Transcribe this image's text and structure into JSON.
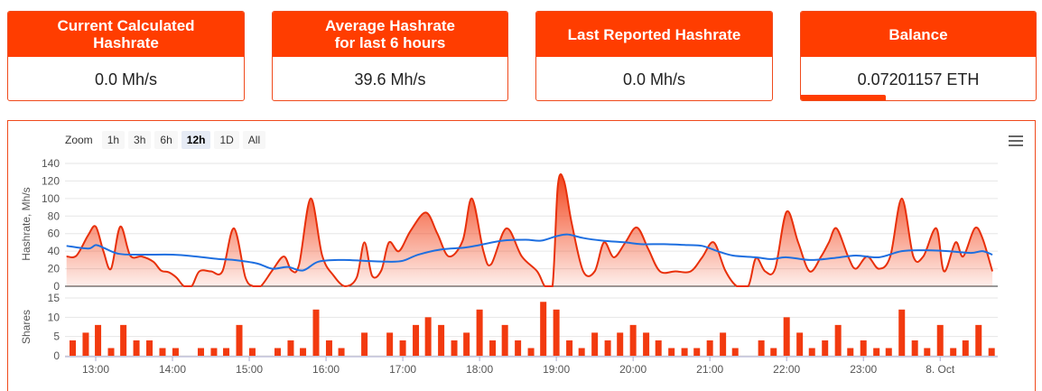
{
  "cards": [
    {
      "title": "Current Calculated\nHashrate",
      "value": "0.0 Mh/s"
    },
    {
      "title": "Average Hashrate\nfor last 6 hours",
      "value": "39.6 Mh/s"
    },
    {
      "title": "Last Reported Hashrate",
      "value": "0.0 Mh/s"
    },
    {
      "title": "Balance",
      "value": "0.07201157 ETH",
      "progress": 0.36
    }
  ],
  "zoom": {
    "label": "Zoom",
    "buttons": [
      "1h",
      "3h",
      "6h",
      "12h",
      "1D",
      "All"
    ],
    "active": "12h"
  },
  "menu_icon": "hamburger-menu-icon",
  "colors": {
    "accent": "#ff3d00",
    "line_blue": "#1e6fe0",
    "bar_red": "#f23a0f"
  },
  "chart_data": [
    {
      "type": "area",
      "ylabel": "Hashrate, Mh/s",
      "ylim": [
        0,
        140
      ],
      "yticks": [
        0,
        20,
        40,
        60,
        80,
        100,
        120,
        140
      ],
      "x_range": [
        12.6,
        24.75
      ],
      "series": [
        {
          "name": "",
          "kind": "area",
          "points": [
            [
              12.62,
              34
            ],
            [
              12.75,
              35
            ],
            [
              12.9,
              58
            ],
            [
              13.0,
              68
            ],
            [
              13.1,
              40
            ],
            [
              13.2,
              20
            ],
            [
              13.32,
              68
            ],
            [
              13.45,
              35
            ],
            [
              13.6,
              34
            ],
            [
              13.75,
              28
            ],
            [
              13.85,
              18
            ],
            [
              13.95,
              16
            ],
            [
              14.05,
              10
            ],
            [
              14.15,
              0
            ],
            [
              14.25,
              0
            ],
            [
              14.35,
              17
            ],
            [
              14.5,
              17
            ],
            [
              14.65,
              17
            ],
            [
              14.8,
              66
            ],
            [
              14.95,
              10
            ],
            [
              15.05,
              0
            ],
            [
              15.15,
              0
            ],
            [
              15.3,
              18
            ],
            [
              15.45,
              34
            ],
            [
              15.55,
              18
            ],
            [
              15.65,
              25
            ],
            [
              15.8,
              100
            ],
            [
              15.95,
              35
            ],
            [
              16.1,
              12
            ],
            [
              16.25,
              0
            ],
            [
              16.4,
              10
            ],
            [
              16.5,
              50
            ],
            [
              16.6,
              12
            ],
            [
              16.72,
              18
            ],
            [
              16.82,
              50
            ],
            [
              16.95,
              40
            ],
            [
              17.1,
              63
            ],
            [
              17.3,
              84
            ],
            [
              17.45,
              60
            ],
            [
              17.6,
              34
            ],
            [
              17.78,
              52
            ],
            [
              17.9,
              100
            ],
            [
              18.05,
              40
            ],
            [
              18.15,
              25
            ],
            [
              18.35,
              66
            ],
            [
              18.55,
              34
            ],
            [
              18.75,
              17
            ],
            [
              18.85,
              0
            ],
            [
              18.95,
              0
            ],
            [
              19.02,
              115
            ],
            [
              19.1,
              120
            ],
            [
              19.2,
              72
            ],
            [
              19.35,
              17
            ],
            [
              19.5,
              17
            ],
            [
              19.62,
              50
            ],
            [
              19.75,
              33
            ],
            [
              19.9,
              50
            ],
            [
              20.05,
              67
            ],
            [
              20.2,
              42
            ],
            [
              20.35,
              17
            ],
            [
              20.55,
              17
            ],
            [
              20.75,
              17
            ],
            [
              20.9,
              33
            ],
            [
              21.05,
              50
            ],
            [
              21.2,
              18
            ],
            [
              21.35,
              0
            ],
            [
              21.5,
              0
            ],
            [
              21.6,
              32
            ],
            [
              21.72,
              17
            ],
            [
              21.85,
              20
            ],
            [
              22.0,
              85
            ],
            [
              22.15,
              50
            ],
            [
              22.3,
              17
            ],
            [
              22.45,
              34
            ],
            [
              22.55,
              50
            ],
            [
              22.65,
              66
            ],
            [
              22.8,
              34
            ],
            [
              22.9,
              20
            ],
            [
              23.05,
              34
            ],
            [
              23.2,
              20
            ],
            [
              23.35,
              34
            ],
            [
              23.5,
              100
            ],
            [
              23.65,
              34
            ],
            [
              23.78,
              34
            ],
            [
              23.95,
              66
            ],
            [
              24.05,
              17
            ],
            [
              24.2,
              50
            ],
            [
              24.3,
              34
            ],
            [
              24.45,
              66
            ],
            [
              24.55,
              55
            ],
            [
              24.68,
              17
            ]
          ]
        },
        {
          "name": "",
          "kind": "line",
          "points": [
            [
              12.62,
              46
            ],
            [
              12.9,
              43
            ],
            [
              13.0,
              47
            ],
            [
              13.1,
              44
            ],
            [
              13.3,
              37
            ],
            [
              13.6,
              36
            ],
            [
              14.0,
              36
            ],
            [
              14.3,
              34
            ],
            [
              14.6,
              31
            ],
            [
              14.8,
              30
            ],
            [
              15.1,
              26
            ],
            [
              15.3,
              20
            ],
            [
              15.5,
              22
            ],
            [
              15.7,
              18
            ],
            [
              15.9,
              28
            ],
            [
              16.2,
              30
            ],
            [
              16.5,
              29
            ],
            [
              16.8,
              28
            ],
            [
              17.0,
              29
            ],
            [
              17.2,
              36
            ],
            [
              17.5,
              42
            ],
            [
              17.8,
              44
            ],
            [
              18.0,
              47
            ],
            [
              18.3,
              52
            ],
            [
              18.6,
              53
            ],
            [
              18.8,
              52
            ],
            [
              19.0,
              57
            ],
            [
              19.15,
              59
            ],
            [
              19.35,
              55
            ],
            [
              19.6,
              52
            ],
            [
              19.9,
              50
            ],
            [
              20.1,
              48
            ],
            [
              20.4,
              48
            ],
            [
              20.7,
              47
            ],
            [
              20.9,
              46
            ],
            [
              21.1,
              40
            ],
            [
              21.3,
              35
            ],
            [
              21.6,
              33
            ],
            [
              21.8,
              31
            ],
            [
              22.0,
              33
            ],
            [
              22.3,
              30
            ],
            [
              22.6,
              32
            ],
            [
              22.9,
              35
            ],
            [
              23.2,
              33
            ],
            [
              23.5,
              40
            ],
            [
              23.8,
              41
            ],
            [
              24.1,
              40
            ],
            [
              24.4,
              38
            ],
            [
              24.55,
              40
            ],
            [
              24.68,
              36
            ]
          ]
        }
      ]
    },
    {
      "type": "bar",
      "ylabel": "Shares",
      "ylim": [
        0,
        15
      ],
      "yticks": [
        0,
        5,
        10,
        15
      ],
      "x_range": [
        12.6,
        24.75
      ],
      "xticks": [
        "13:00",
        "14:00",
        "15:00",
        "16:00",
        "17:00",
        "18:00",
        "19:00",
        "20:00",
        "21:00",
        "22:00",
        "23:00",
        "8. Oct"
      ],
      "xtick_values": [
        13,
        14,
        15,
        16,
        17,
        18,
        19,
        20,
        21,
        22,
        23,
        24
      ],
      "bar_x": [
        12.7,
        12.87,
        13.03,
        13.2,
        13.36,
        13.53,
        13.7,
        13.87,
        14.04,
        14.37,
        14.54,
        14.7,
        14.87,
        15.04,
        15.37,
        15.54,
        15.7,
        15.87,
        16.04,
        16.2,
        16.5,
        16.83,
        17.0,
        17.17,
        17.33,
        17.5,
        17.67,
        17.83,
        18.0,
        18.17,
        18.33,
        18.5,
        18.67,
        18.83,
        19.0,
        19.17,
        19.33,
        19.5,
        19.67,
        19.83,
        20.0,
        20.17,
        20.33,
        20.5,
        20.67,
        20.83,
        21.0,
        21.17,
        21.33,
        21.67,
        21.83,
        22.0,
        22.17,
        22.33,
        22.5,
        22.67,
        22.83,
        23.0,
        23.17,
        23.33,
        23.5,
        23.67,
        23.83,
        24.0,
        24.17,
        24.33,
        24.5,
        24.67
      ],
      "values": [
        4,
        6,
        8,
        2,
        8,
        4,
        4,
        2,
        2,
        2,
        2,
        2,
        8,
        2,
        2,
        4,
        2,
        12,
        4,
        2,
        6,
        6,
        4,
        8,
        10,
        8,
        4,
        6,
        12,
        4,
        8,
        4,
        2,
        14,
        12,
        4,
        2,
        6,
        4,
        6,
        8,
        6,
        4,
        2,
        2,
        2,
        4,
        6,
        2,
        4,
        2,
        10,
        6,
        2,
        4,
        8,
        2,
        4,
        2,
        2,
        12,
        4,
        2,
        8,
        2,
        4,
        8,
        2
      ]
    }
  ]
}
